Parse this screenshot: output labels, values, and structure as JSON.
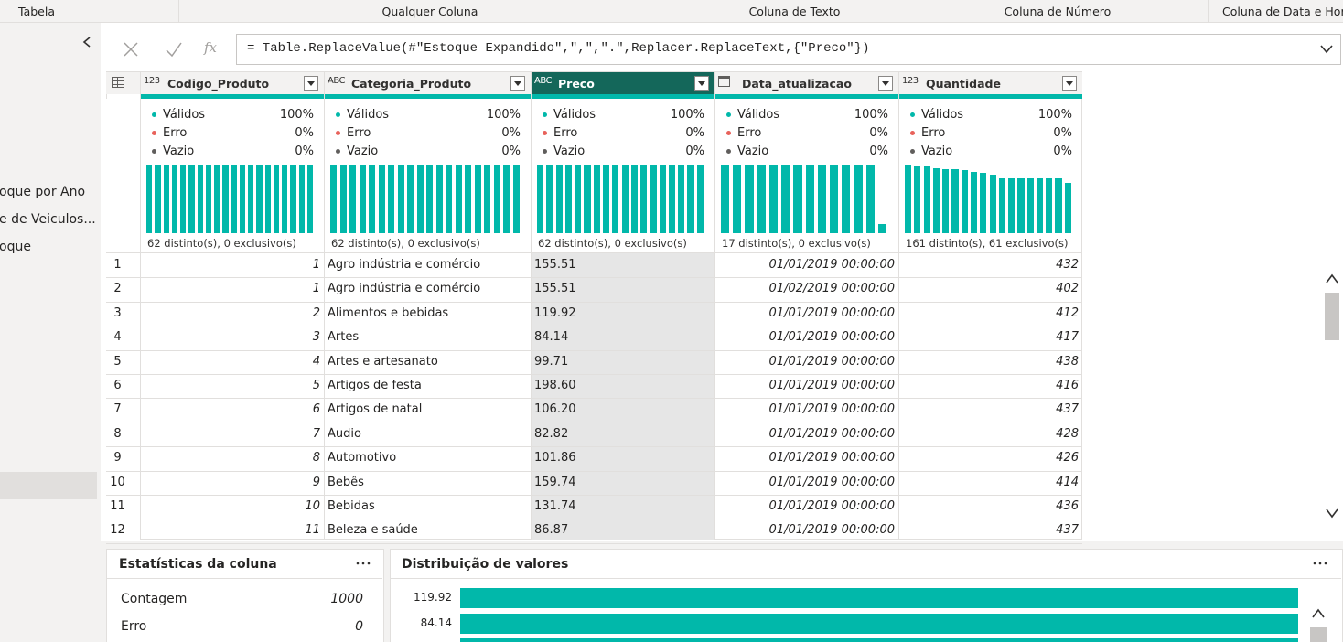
{
  "ribbon_tabs": [
    "Tabela",
    "Qualquer Coluna",
    "Coluna de Texto",
    "Coluna de Número",
    "Coluna de Data e Hora"
  ],
  "queries": {
    "items": [
      "oque por Ano",
      "e de Veiculos...",
      "oque"
    ],
    "selected": 2
  },
  "formula_bar": {
    "fx": "fx",
    "formula": "= Table.ReplaceValue(#\"Estoque Expandido\",\",\",\".\",Replacer.ReplaceText,{\"Preco\"})"
  },
  "grid": {
    "quality_labels": [
      "Válidos",
      "Erro",
      "Vazio"
    ],
    "selected_column": 2,
    "columns": [
      {
        "type_icon": "123",
        "name": "Codigo_Produto",
        "quality": [
          "100%",
          "0%",
          "0%"
        ],
        "profile_bars": [
          100,
          100,
          100,
          100,
          100,
          100,
          100,
          100,
          100,
          100,
          100,
          100,
          100,
          100,
          100,
          100,
          100,
          100,
          100,
          100
        ],
        "distinct": "62 distinto(s), 0 exclusivo(s)"
      },
      {
        "type_icon": "ABC",
        "name": "Categoria_Produto",
        "quality": [
          "100%",
          "0%",
          "0%"
        ],
        "profile_bars": [
          100,
          100,
          100,
          100,
          100,
          100,
          100,
          100,
          100,
          100,
          100,
          100,
          100,
          100,
          100,
          100,
          100,
          100,
          100,
          100
        ],
        "distinct": "62 distinto(s), 0 exclusivo(s)"
      },
      {
        "type_icon": "ABC",
        "name": "Preco",
        "quality": [
          "100%",
          "0%",
          "0%"
        ],
        "profile_bars": [
          100,
          100,
          100,
          100,
          100,
          100,
          100,
          100,
          100,
          100,
          100,
          100,
          100,
          100,
          100,
          100,
          100,
          100
        ],
        "distinct": "62 distinto(s), 0 exclusivo(s)"
      },
      {
        "name": "Data_atualizacao",
        "quality": [
          "100%",
          "0%",
          "0%"
        ],
        "profile_bars": [
          100,
          100,
          100,
          100,
          100,
          100,
          100,
          100,
          100,
          100,
          100,
          100,
          100,
          14
        ],
        "distinct": "17 distinto(s), 0 exclusivo(s)"
      },
      {
        "type_icon": "123",
        "name": "Quantidade",
        "quality": [
          "100%",
          "0%",
          "0%"
        ],
        "profile_bars": [
          100,
          99,
          97,
          95,
          94,
          93,
          92,
          90,
          88,
          86,
          80,
          80,
          80,
          80,
          80,
          80,
          80,
          74
        ],
        "distinct": "161 distinto(s), 61 exclusivo(s)"
      }
    ],
    "rows": [
      [
        "1",
        "1",
        "Agro indústria e comércio",
        "155.51",
        "01/01/2019 00:00:00",
        "432"
      ],
      [
        "2",
        "1",
        "Agro indústria e comércio",
        "155.51",
        "01/02/2019 00:00:00",
        "402"
      ],
      [
        "3",
        "2",
        "Alimentos e bebidas",
        "119.92",
        "01/01/2019 00:00:00",
        "412"
      ],
      [
        "4",
        "3",
        "Artes",
        "84.14",
        "01/01/2019 00:00:00",
        "417"
      ],
      [
        "5",
        "4",
        "Artes e artesanato",
        "99.71",
        "01/01/2019 00:00:00",
        "438"
      ],
      [
        "6",
        "5",
        "Artigos de festa",
        "198.60",
        "01/01/2019 00:00:00",
        "416"
      ],
      [
        "7",
        "6",
        "Artigos de natal",
        "106.20",
        "01/01/2019 00:00:00",
        "437"
      ],
      [
        "8",
        "7",
        "Áudio",
        "82.82",
        "01/01/2019 00:00:00",
        "428"
      ],
      [
        "9",
        "8",
        "Automotivo",
        "101.86",
        "01/01/2019 00:00:00",
        "426"
      ],
      [
        "10",
        "9",
        "Bebês",
        "159.74",
        "01/01/2019 00:00:00",
        "414"
      ],
      [
        "11",
        "10",
        "Bebidas",
        "131.74",
        "01/01/2019 00:00:00",
        "436"
      ],
      [
        "12",
        "11",
        "Beleza e saúde",
        "86.87",
        "01/01/2019 00:00:00",
        "437"
      ]
    ]
  },
  "column_stats": {
    "title": "Estatísticas da coluna",
    "rows": [
      [
        "Contagem",
        "1000"
      ],
      [
        "Erro",
        "0"
      ]
    ]
  },
  "value_distribution": {
    "title": "Distribuição de valores",
    "labels": [
      "119.92",
      "84.14"
    ]
  }
}
